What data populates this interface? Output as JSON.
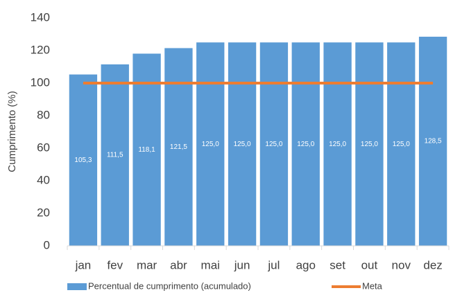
{
  "chart_data": {
    "type": "bar",
    "y_label": "Cumprimento (%)",
    "categories": [
      "jan",
      "fev",
      "mar",
      "abr",
      "mai",
      "jun",
      "jul",
      "ago",
      "set",
      "out",
      "nov",
      "dez"
    ],
    "series": [
      {
        "name": "Percentual de cumprimento (acumulado)",
        "type": "bar",
        "color": "#5b9bd5",
        "values": [
          105.3,
          111.5,
          118.1,
          121.5,
          125.0,
          125.0,
          125.0,
          125.0,
          125.0,
          125.0,
          125.0,
          128.5
        ],
        "value_labels": [
          "105,3",
          "111,5",
          "118,1",
          "121,5",
          "125,0",
          "125,0",
          "125,0",
          "125,0",
          "125,0",
          "125,0",
          "125,0",
          "128,5"
        ]
      },
      {
        "name": "Meta",
        "type": "line",
        "color": "#ed7d31",
        "values": [
          100,
          100,
          100,
          100,
          100,
          100,
          100,
          100,
          100,
          100,
          100,
          100
        ]
      }
    ],
    "ylim": [
      0,
      140
    ],
    "yticks": [
      0,
      20,
      40,
      60,
      80,
      100,
      120,
      140
    ],
    "grid": false,
    "legend": "bottom"
  }
}
